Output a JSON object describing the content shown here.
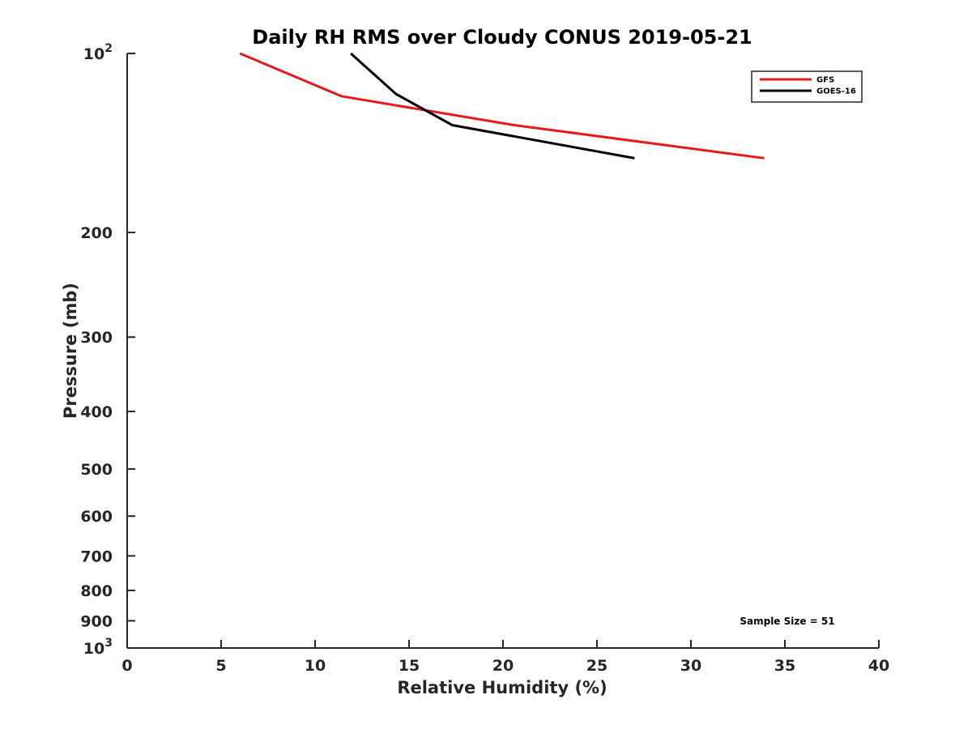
{
  "chart_data": {
    "type": "line",
    "title": "Daily RH RMS over Cloudy CONUS 2019-05-21",
    "xlabel": "Relative Humidity (%)",
    "ylabel": "Pressure (mb)",
    "xlim": [
      0,
      40
    ],
    "ylim": [
      100,
      1000
    ],
    "y_scale": "log",
    "y_reversed": true,
    "grid": false,
    "legend_position": "top-right",
    "x_ticks": [
      "0",
      "5",
      "10",
      "15",
      "20",
      "25",
      "30",
      "35",
      "40"
    ],
    "x_tick_values": [
      0,
      5,
      10,
      15,
      20,
      25,
      30,
      35,
      40
    ],
    "y_ticks": [
      {
        "value": 100,
        "base": "10",
        "exp": "2"
      },
      {
        "value": 200,
        "label": "200"
      },
      {
        "value": 300,
        "label": "300"
      },
      {
        "value": 400,
        "label": "400"
      },
      {
        "value": 500,
        "label": "500"
      },
      {
        "value": 600,
        "label": "600"
      },
      {
        "value": 700,
        "label": "700"
      },
      {
        "value": 800,
        "label": "800"
      },
      {
        "value": 900,
        "label": "900"
      },
      {
        "value": 1000,
        "base": "10",
        "exp": "3"
      }
    ],
    "series": [
      {
        "name": "GFS",
        "color": "#e41a1c",
        "points": [
          [
            6.0,
            100
          ],
          [
            11.4,
            118
          ],
          [
            20.6,
            132
          ],
          [
            33.9,
            150
          ]
        ]
      },
      {
        "name": "GOES-16",
        "color": "#000000",
        "points": [
          [
            11.9,
            100
          ],
          [
            14.3,
            117
          ],
          [
            17.3,
            132
          ],
          [
            27.0,
            150
          ]
        ]
      }
    ],
    "annotation": "Sample Size = 51"
  }
}
